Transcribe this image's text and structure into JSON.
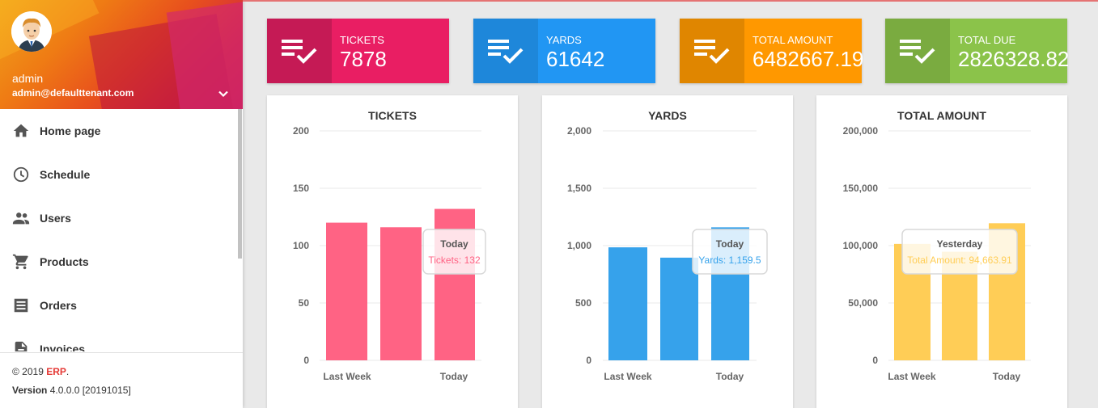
{
  "sidebar": {
    "user": {
      "name": "admin",
      "email": "admin@defaulttenant.com"
    },
    "menu": [
      {
        "label": "Home page",
        "icon": "home-icon"
      },
      {
        "label": "Schedule",
        "icon": "clock-icon"
      },
      {
        "label": "Users",
        "icon": "users-icon"
      },
      {
        "label": "Products",
        "icon": "cart-icon"
      },
      {
        "label": "Orders",
        "icon": "orders-icon"
      },
      {
        "label": "Invoices",
        "icon": "invoice-icon"
      }
    ],
    "footer": {
      "copyright_prefix": "© 2019 ",
      "brand": "ERP",
      "copyright_suffix": ".",
      "version_label": "Version",
      "version_value": " 4.0.0.0 [20191015]"
    }
  },
  "infoboxes": [
    {
      "title": "TICKETS",
      "value": "7878",
      "color": "#e91e63",
      "icon_color": "#c51a55"
    },
    {
      "title": "YARDS",
      "value": "61642",
      "color": "#2196f3",
      "icon_color": "#1e87da"
    },
    {
      "title": "TOTAL AMOUNT",
      "value": "6482667.19",
      "color": "#ff9800",
      "icon_color": "#e08600"
    },
    {
      "title": "TOTAL DUE",
      "value": "2826328.82",
      "color": "#8bc34a",
      "icon_color": "#7aab40"
    }
  ],
  "chart_data": [
    {
      "type": "bar",
      "title": "TICKETS",
      "categories": [
        "Last Week",
        "",
        "Today"
      ],
      "x_tick_labels": [
        "Last Week",
        "Today"
      ],
      "values": [
        120,
        116,
        132
      ],
      "ylim": [
        0,
        200
      ],
      "yticks": [
        "0",
        "50",
        "100",
        "150",
        "200"
      ],
      "color": "#ff6384",
      "tooltip": {
        "title": "Today",
        "label": "Tickets: 132",
        "color": "#ff6384"
      }
    },
    {
      "type": "bar",
      "title": "YARDS",
      "categories": [
        "Last Week",
        "",
        "Today"
      ],
      "x_tick_labels": [
        "Last Week",
        "Today"
      ],
      "values": [
        985,
        895,
        1159.5
      ],
      "ylim": [
        0,
        2000
      ],
      "yticks": [
        "0",
        "500",
        "1,000",
        "1,500",
        "2,000"
      ],
      "color": "#36a2eb",
      "tooltip": {
        "title": "Today",
        "label": "Yards: 1,159.5",
        "color": "#36a2eb"
      }
    },
    {
      "type": "bar",
      "title": "TOTAL AMOUNT",
      "categories": [
        "Last Week",
        "Yesterday",
        "Today"
      ],
      "x_tick_labels": [
        "Last Week",
        "Today"
      ],
      "values": [
        101500,
        94663.91,
        119500
      ],
      "ylim": [
        0,
        200000
      ],
      "yticks": [
        "0",
        "50,000",
        "100,000",
        "150,000",
        "200,000"
      ],
      "color": "#ffcd56",
      "tooltip": {
        "title": "Yesterday",
        "label": "Total Amount: 94,663.91",
        "color": "#ffcd56"
      }
    }
  ]
}
